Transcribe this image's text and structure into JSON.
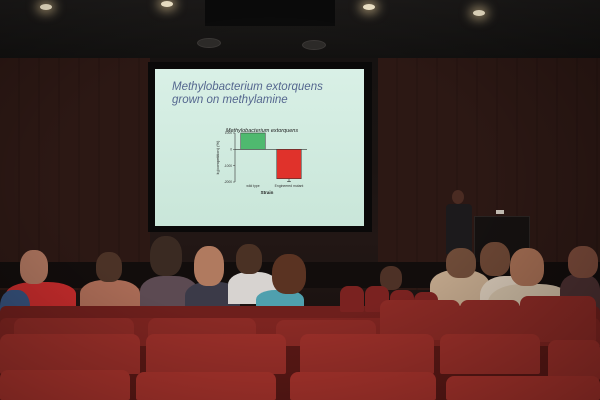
{
  "slide": {
    "title": "Methylobacterium extorquens grown on methylamine",
    "chart_caption": "Methylobacterium extorquens"
  },
  "chart_data": {
    "type": "bar",
    "title": "Methylobacterium extorquens",
    "xlabel": "Strain",
    "ylabel": "k₁(competition) (%)",
    "categories": [
      "wild type",
      "Engineered mutant"
    ],
    "series": [
      {
        "values": [
          1000,
          -1800
        ]
      }
    ],
    "bar_colors": [
      "#4fb96f",
      "#e0322b"
    ],
    "yticks": [
      "1000",
      "0",
      "-1000",
      "-2000"
    ],
    "ylim": [
      -2000,
      1000
    ],
    "grid": false,
    "legend": "none"
  }
}
